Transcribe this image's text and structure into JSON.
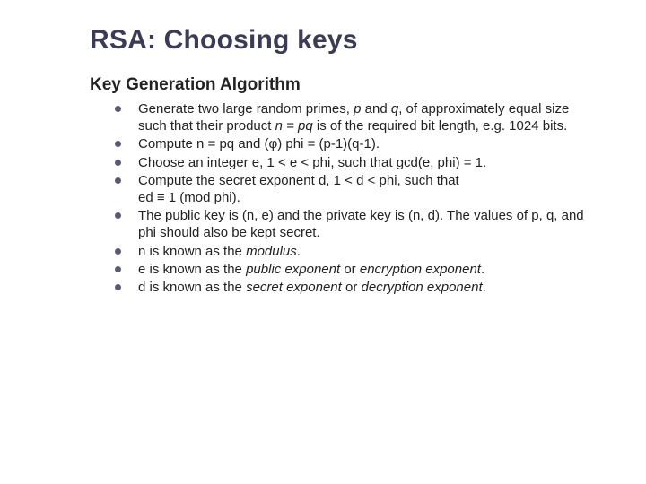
{
  "colors": {
    "title": "#3b3b55",
    "text": "#222222",
    "bullet": "#5a5a72",
    "background": "#ffffff"
  },
  "typography": {
    "title_font": "Arial",
    "title_size_pt": 22,
    "title_weight": "bold",
    "subtitle_font": "Verdana",
    "subtitle_size_pt": 14,
    "subtitle_weight": "bold",
    "body_font": "Verdana",
    "body_size_pt": 11,
    "line_height": 1.28
  },
  "title": "RSA: Choosing keys",
  "subtitle": "Key Generation Algorithm",
  "bullets": [
    {
      "segments": [
        {
          "text": "Generate two large random primes, "
        },
        {
          "text": "p",
          "italic": true
        },
        {
          "text": " and "
        },
        {
          "text": "q",
          "italic": true
        },
        {
          "text": ", of approximately equal size such that their product "
        },
        {
          "text": "n = pq",
          "italic": true
        },
        {
          "text": " is of the required bit length, e.g. 1024 bits."
        }
      ]
    },
    {
      "segments": [
        {
          "text": "Compute n = pq and (φ) phi = (p-1)(q-1)."
        }
      ]
    },
    {
      "segments": [
        {
          "text": "Choose an integer e, 1 < e < phi, such that gcd(e, phi) = 1."
        }
      ]
    },
    {
      "segments": [
        {
          "text": "Compute the secret exponent d, 1 < d < phi, such that"
        },
        {
          "text": "\ned ≡ 1 (mod phi)."
        }
      ]
    },
    {
      "segments": [
        {
          "text": "The public key is (n, e) and the private key is (n, d). The values of p, q, and phi should also be kept secret."
        }
      ]
    },
    {
      "segments": [
        {
          "text": "n is known as the "
        },
        {
          "text": "modulus",
          "italic": true
        },
        {
          "text": "."
        }
      ]
    },
    {
      "segments": [
        {
          "text": "e is known as the "
        },
        {
          "text": "public exponent",
          "italic": true
        },
        {
          "text": " or "
        },
        {
          "text": "encryption exponent",
          "italic": true
        },
        {
          "text": "."
        }
      ]
    },
    {
      "segments": [
        {
          "text": "d is known as the "
        },
        {
          "text": "secret exponent",
          "italic": true
        },
        {
          "text": " or "
        },
        {
          "text": "decryption exponent",
          "italic": true
        },
        {
          "text": "."
        }
      ]
    }
  ]
}
